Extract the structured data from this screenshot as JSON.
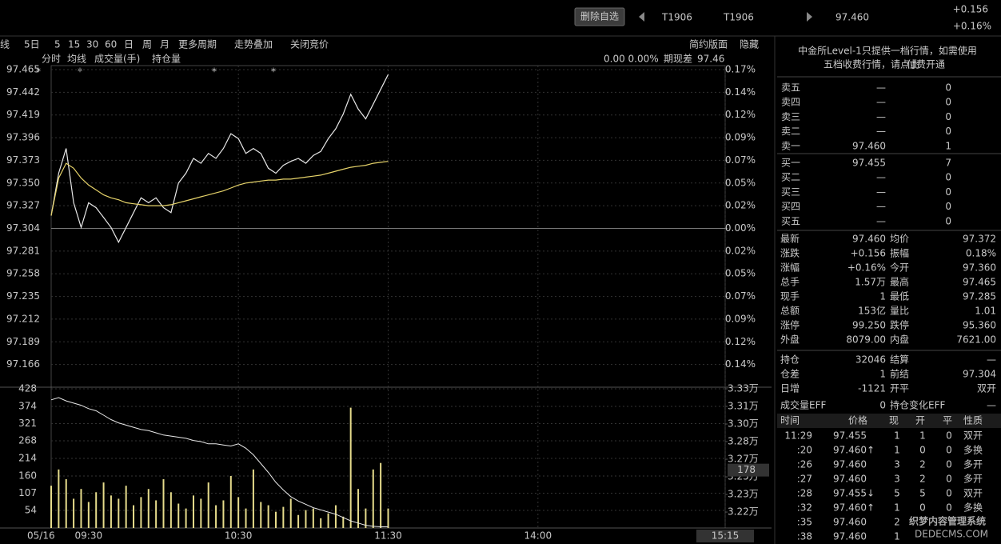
{
  "header": {
    "button": "删除自选",
    "code": "T1906",
    "name": "T1906",
    "price": "97.460",
    "change": "+0.156",
    "change_pct": "+0.16%"
  },
  "toolbar": [
    "线",
    "5日",
    "5",
    "15",
    "30",
    "60",
    "日",
    "周",
    "月",
    "更多周期",
    "走势叠加",
    "关闭竞价"
  ],
  "toolbar_right": [
    "简约版面",
    "隐藏"
  ],
  "tabs": [
    "分时",
    "均线",
    "成交量(手)",
    "持仓量"
  ],
  "basis": {
    "values": "0.00 0.00%",
    "label": "期现差",
    "value": "97.46"
  },
  "markers": [
    "*",
    "*",
    "*",
    "*"
  ],
  "chart_data": [
    {
      "type": "line",
      "baseline": 97.304,
      "x": [
        0,
        3,
        6,
        9,
        12,
        15,
        18,
        21,
        24,
        27,
        30,
        33,
        36,
        39,
        42,
        45,
        48,
        51,
        54,
        57,
        60,
        63,
        66,
        69,
        72,
        75,
        78,
        81,
        84,
        87,
        90,
        93,
        96,
        99,
        102,
        105,
        108,
        111,
        114,
        117,
        120,
        123,
        126,
        129,
        132,
        135
      ],
      "xlim": [
        0,
        270
      ],
      "ylim": [
        97.143,
        97.465
      ],
      "yticks": [
        97.465,
        97.442,
        97.419,
        97.396,
        97.373,
        {
          "value": 97.35,
          "label": "97.350"
        },
        97.327,
        97.304,
        97.281,
        97.258,
        97.235,
        97.212,
        97.189,
        97.166
      ],
      "y2lim": [
        -0.1655,
        0.1655
      ],
      "y2ticks": [
        {
          "value": 0.1655,
          "label": "0.17%"
        },
        {
          "value": 0.1418,
          "label": "0.14%"
        },
        {
          "value": 0.1182,
          "label": "0.12%"
        },
        {
          "value": 0.0945,
          "label": "0.09%"
        },
        {
          "value": 0.0709,
          "label": "0.07%"
        },
        {
          "value": 0.0473,
          "label": "0.05%"
        },
        {
          "value": 0.0236,
          "label": "0.02%"
        },
        {
          "value": 0,
          "label": "0.00%"
        },
        {
          "value": -0.0236,
          "label": "0.02%"
        },
        {
          "value": -0.0473,
          "label": "0.05%"
        },
        {
          "value": -0.0709,
          "label": "0.07%"
        },
        {
          "value": -0.0945,
          "label": "0.09%"
        },
        {
          "value": -0.1182,
          "label": "0.12%"
        },
        {
          "value": -0.1418,
          "label": "0.14%"
        }
      ],
      "series": [
        {
          "name": "分时",
          "color": "#e8e8e8",
          "values": [
            97.317,
            97.36,
            97.385,
            97.33,
            97.305,
            97.33,
            97.325,
            97.315,
            97.305,
            97.29,
            97.305,
            97.32,
            97.335,
            97.33,
            97.335,
            97.325,
            97.32,
            97.35,
            97.36,
            97.375,
            97.37,
            97.38,
            97.375,
            97.385,
            97.4,
            97.395,
            97.38,
            97.385,
            97.38,
            97.365,
            97.36,
            97.368,
            97.372,
            97.375,
            97.37,
            97.378,
            97.382,
            97.395,
            97.405,
            97.42,
            97.44,
            97.425,
            97.415,
            97.43,
            97.445,
            97.46
          ]
        },
        {
          "name": "均线",
          "color": "#e6d36a",
          "values": [
            97.317,
            97.355,
            97.37,
            97.365,
            97.355,
            97.348,
            97.343,
            97.338,
            97.335,
            97.333,
            97.33,
            97.329,
            97.328,
            97.327,
            97.327,
            97.327,
            97.328,
            97.33,
            97.332,
            97.334,
            97.336,
            97.338,
            97.34,
            97.342,
            97.345,
            97.348,
            97.35,
            97.351,
            97.352,
            97.353,
            97.353,
            97.354,
            97.354,
            97.355,
            97.356,
            97.357,
            97.358,
            97.36,
            97.362,
            97.364,
            97.366,
            97.367,
            97.368,
            97.37,
            97.371,
            97.372
          ]
        }
      ]
    },
    {
      "type": "bar",
      "x": [
        0,
        3,
        6,
        9,
        12,
        15,
        18,
        21,
        24,
        27,
        30,
        33,
        36,
        39,
        42,
        45,
        48,
        51,
        54,
        57,
        60,
        63,
        66,
        69,
        72,
        75,
        78,
        81,
        84,
        87,
        90,
        93,
        96,
        99,
        102,
        105,
        108,
        111,
        114,
        117,
        120,
        123,
        126,
        129,
        132,
        135
      ],
      "xlim": [
        0,
        270
      ],
      "xticks": [
        {
          "value": 0,
          "label": "05/16"
        },
        {
          "value": 15,
          "label": "09:30"
        },
        {
          "value": 75,
          "label": "10:30"
        },
        {
          "value": 135,
          "label": "11:30"
        },
        {
          "value": 195,
          "label": "14:00"
        },
        {
          "value": 270,
          "label": "15:15"
        }
      ],
      "ylim": [
        0,
        428
      ],
      "yticks": [
        428,
        374,
        321,
        268,
        214,
        160,
        107,
        54
      ],
      "y2lim": [
        32035,
        33300
      ],
      "y2ticks": [
        {
          "value": 33300,
          "label": "3.33万"
        },
        {
          "value": 33140,
          "label": "3.31万"
        },
        {
          "value": 32980,
          "label": "3.30万"
        },
        {
          "value": 32820,
          "label": "3.28万"
        },
        {
          "value": 32660,
          "label": "3.27万"
        },
        {
          "value": 32500,
          "label": "3.25万"
        },
        {
          "value": 32340,
          "label": "3.23万"
        },
        {
          "value": 32180,
          "label": "3.22万"
        }
      ],
      "cursor_value": 178,
      "series": [
        {
          "name": "成交量(手)",
          "color": "#e6dc8c",
          "values": [
            130,
            180,
            150,
            90,
            120,
            80,
            110,
            140,
            100,
            90,
            130,
            70,
            95,
            120,
            85,
            150,
            110,
            75,
            60,
            100,
            90,
            140,
            70,
            85,
            160,
            95,
            60,
            180,
            80,
            70,
            50,
            65,
            90,
            40,
            55,
            60,
            30,
            45,
            70,
            35,
            370,
            120,
            60,
            180,
            200,
            60
          ]
        },
        {
          "name": "持仓量",
          "color": "#e8e8e8",
          "axis": "y2",
          "values": [
            33200,
            33220,
            33190,
            33170,
            33150,
            33120,
            33100,
            33060,
            33020,
            32990,
            32970,
            32950,
            32930,
            32920,
            32900,
            32880,
            32870,
            32860,
            32850,
            32830,
            32820,
            32800,
            32800,
            32790,
            32780,
            32800,
            32760,
            32700,
            32620,
            32540,
            32450,
            32380,
            32320,
            32280,
            32250,
            32220,
            32200,
            32180,
            32160,
            32130,
            32100,
            32080,
            32060,
            32050,
            32046,
            32046
          ]
        }
      ]
    }
  ],
  "notice": [
    "中金所Level-1只提供一档行情，如需使用",
    "五档收费行情，请点此",
    "付费开通"
  ],
  "order_book": [
    [
      "卖五",
      "—",
      "0"
    ],
    [
      "卖四",
      "—",
      "0"
    ],
    [
      "卖三",
      "—",
      "0"
    ],
    [
      "卖二",
      "—",
      "0"
    ],
    [
      "卖一",
      "97.460",
      "1"
    ],
    [
      "买一",
      "97.455",
      "7"
    ],
    [
      "买二",
      "—",
      "0"
    ],
    [
      "买三",
      "—",
      "0"
    ],
    [
      "买四",
      "—",
      "0"
    ],
    [
      "买五",
      "—",
      "0"
    ]
  ],
  "stats": [
    [
      "最新",
      "97.460",
      "均价",
      "97.372"
    ],
    [
      "涨跌",
      "+0.156",
      "振幅",
      "0.18%"
    ],
    [
      "涨幅",
      "+0.16%",
      "今开",
      "97.360"
    ],
    [
      "总手",
      "1.57万",
      "最高",
      "97.465"
    ],
    [
      "现手",
      "1",
      "最低",
      "97.285"
    ],
    [
      "总额",
      "153亿",
      "量比",
      "1.01"
    ],
    [
      "涨停",
      "99.250",
      "跌停",
      "95.360"
    ],
    [
      "外盘",
      "8079.00",
      "内盘",
      "7621.00"
    ]
  ],
  "position_stats": [
    [
      "持仓",
      "32046",
      "结算",
      "—"
    ],
    [
      "仓差",
      "1",
      "前结",
      "97.304"
    ],
    [
      "日增",
      "-1121",
      "开平",
      "双开"
    ],
    [
      "成交量EFF",
      "0",
      "持仓变化EFF",
      "—"
    ]
  ],
  "trades": {
    "header": [
      "时间",
      "价格",
      "现",
      "开",
      "平",
      "性质"
    ],
    "rows": [
      [
        "11:29",
        "97.455",
        "1",
        "1",
        "0",
        "双开"
      ],
      [
        ":20",
        "97.460↑",
        "1",
        "0",
        "0",
        "多换"
      ],
      [
        ":26",
        "97.460",
        "3",
        "2",
        "0",
        "多开"
      ],
      [
        ":27",
        "97.460",
        "3",
        "2",
        "0",
        "多开"
      ],
      [
        ":28",
        "97.455↓",
        "5",
        "5",
        "0",
        "双开"
      ],
      [
        ":32",
        "97.460↑",
        "1",
        "0",
        "0",
        "多换"
      ],
      [
        ":35",
        "97.460",
        "2"
      ],
      [
        ":38",
        "97.460",
        "1"
      ]
    ]
  },
  "watermark": [
    "织梦内容管理系统",
    "DEDECMS.COM"
  ]
}
